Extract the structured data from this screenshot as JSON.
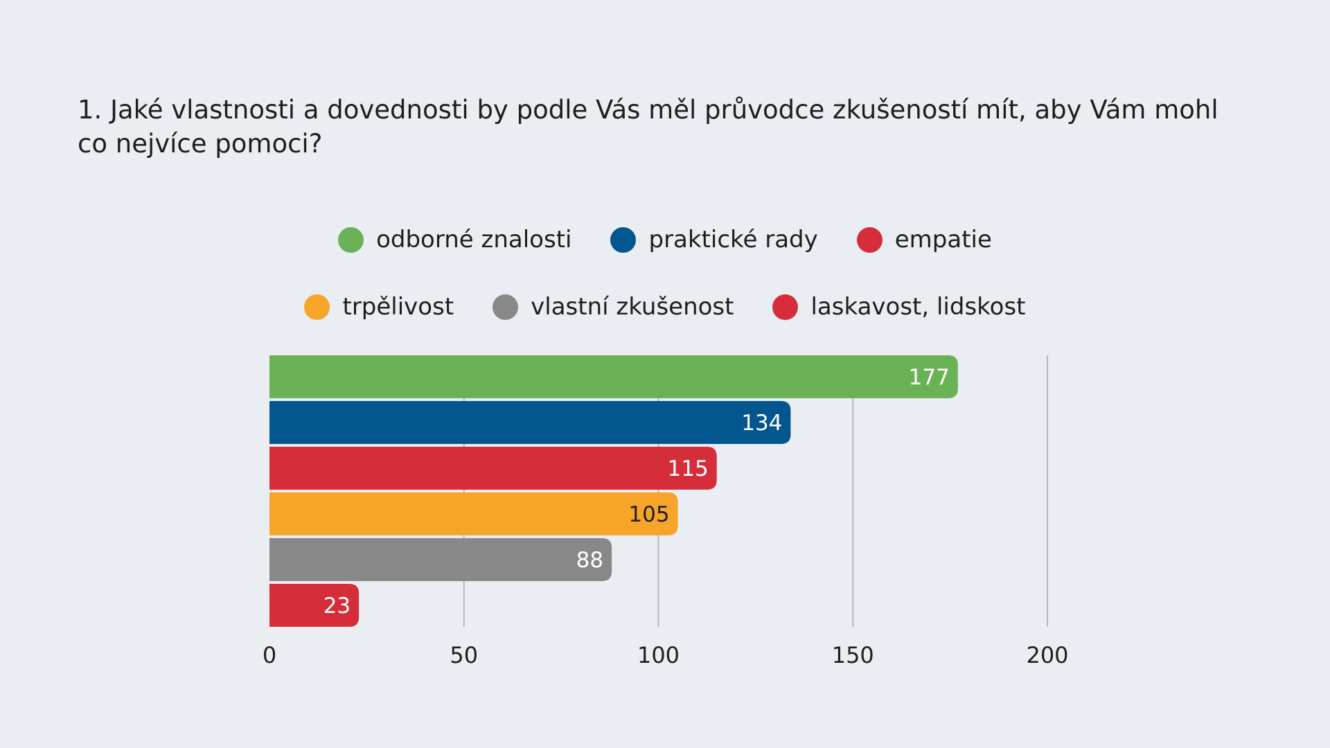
{
  "title": "1. Jaké vlastnosti a dovednosti by podle Vás měl průvodce zkušeností mít, aby Vám mohl co nejvíce pomoci?",
  "legend": {
    "row1": [
      {
        "label": "odborné znalosti",
        "color": "#6ab255"
      },
      {
        "label": "praktické rady",
        "color": "#04568e"
      },
      {
        "label": "empatie",
        "color": "#d52e3a"
      }
    ],
    "row2": [
      {
        "label": "trpělivost",
        "color": "#f7a528"
      },
      {
        "label": "vlastní zkušenost",
        "color": "#888888"
      },
      {
        "label": "laskavost, lidskost",
        "color": "#d52e3a"
      }
    ]
  },
  "chart_data": {
    "type": "bar",
    "orientation": "horizontal",
    "title": "1. Jaké vlastnosti a dovednosti by podle Vás měl průvodce zkušeností mít, aby Vám mohl co nejvíce pomoci?",
    "categories": [
      "odborné znalosti",
      "praktické rady",
      "empatie",
      "trpělivost",
      "vlastní zkušenost",
      "laskavost, lidskost"
    ],
    "values": [
      177,
      134,
      115,
      105,
      88,
      23
    ],
    "colors": [
      "#6ab255",
      "#04568e",
      "#d52e3a",
      "#f7a528",
      "#888888",
      "#d52e3a"
    ],
    "label_colors": [
      "#ffffff",
      "#ffffff",
      "#ffffff",
      "#1e1e1e",
      "#ffffff",
      "#ffffff"
    ],
    "x_ticks": [
      "0",
      "50",
      "100",
      "150",
      "200"
    ],
    "xlim": [
      0,
      200
    ],
    "grid": true,
    "legend_position": "top"
  }
}
